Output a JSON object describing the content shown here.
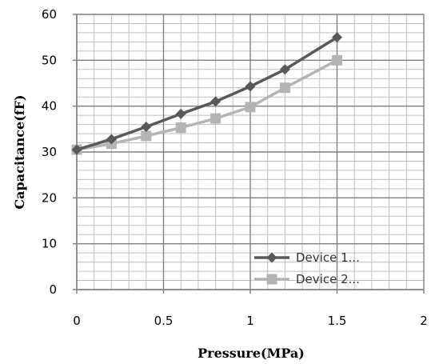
{
  "chart_data": {
    "type": "line",
    "title": "",
    "xlabel": "Pressure(MPa)",
    "ylabel": "Capacitance(fF)",
    "xlim": [
      0,
      2
    ],
    "ylim": [
      0,
      60
    ],
    "x_ticks": [
      0,
      0.5,
      1,
      1.5,
      2
    ],
    "x_tick_labels": [
      "0",
      "0.5",
      "1",
      "1.5",
      "2"
    ],
    "y_ticks": [
      0,
      10,
      20,
      30,
      40,
      50,
      60
    ],
    "y_tick_labels": [
      "0",
      "10",
      "20",
      "30",
      "40",
      "50",
      "60"
    ],
    "grid": true,
    "legend_position": "bottom-right",
    "series": [
      {
        "name": "Device 1...",
        "color": "#595959",
        "marker": "diamond",
        "x": [
          0,
          0.2,
          0.4,
          0.6,
          0.8,
          1.0,
          1.2,
          1.5
        ],
        "y": [
          30.5,
          32.8,
          35.5,
          38.3,
          41.0,
          44.3,
          48.0,
          55.0
        ]
      },
      {
        "name": "Device 2...",
        "color": "#b4b4b4",
        "marker": "square",
        "x": [
          0,
          0.2,
          0.4,
          0.6,
          0.8,
          1.0,
          1.2,
          1.5
        ],
        "y": [
          30.5,
          31.8,
          33.5,
          35.3,
          37.3,
          39.8,
          44.0,
          50.0
        ]
      }
    ]
  }
}
